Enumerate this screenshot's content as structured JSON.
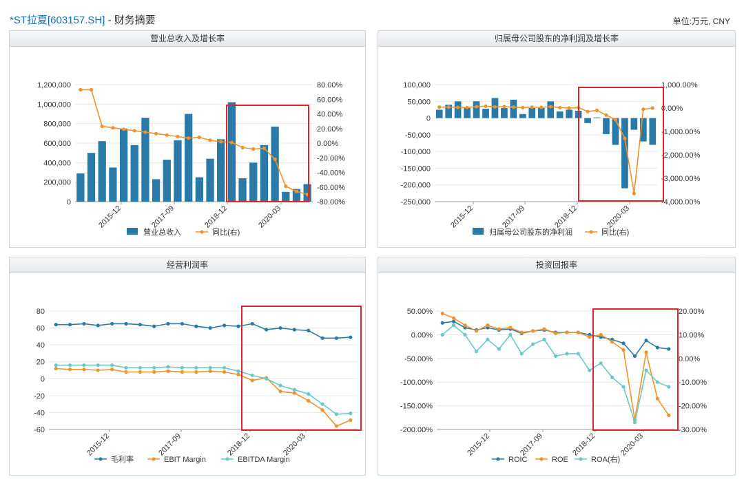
{
  "page": {
    "title_link": "*ST拉夏[603157.SH]",
    "title_rest": " - 财务摘要",
    "unit": "单位:万元, CNY"
  },
  "colors": {
    "bar": "#2a7aa8",
    "orange": "#f0922e",
    "blue": "#2a7aa8",
    "teal": "#6cc7c8",
    "highlight": "#d9262c",
    "grid": "#e6e6e6"
  },
  "chart_data": [
    {
      "type": "bar",
      "title": "营业总收入及增长率",
      "x_ticks": [
        "2015-12",
        "2017-09",
        "2018-12",
        "2020-03"
      ],
      "y_left": {
        "ticks": [
          "0",
          "200,000",
          "400,000",
          "600,000",
          "800,000",
          "1,000,000",
          "1,200,000"
        ],
        "lim": [
          0,
          1200000
        ]
      },
      "y_right": {
        "ticks": [
          "-80.00%",
          "-60.00%",
          "-40.00%",
          "-20.00%",
          "0.00%",
          "20.00%",
          "40.00%",
          "60.00%",
          "80.00%"
        ],
        "lim": [
          -80,
          80
        ]
      },
      "series": [
        {
          "name": "营业总收入",
          "kind": "bar",
          "axis": "left",
          "values": [
            290000,
            500000,
            620000,
            350000,
            750000,
            580000,
            860000,
            230000,
            430000,
            630000,
            900000,
            250000,
            440000,
            640000,
            1020000,
            240000,
            400000,
            580000,
            770000,
            100000,
            130000,
            180000
          ]
        },
        {
          "name": "同比(右)",
          "kind": "line",
          "axis": "right",
          "values": [
            73,
            73,
            23,
            21,
            19,
            17,
            15,
            13,
            11,
            9,
            7,
            8,
            4,
            2,
            1,
            -6,
            -8,
            -7,
            -22,
            -59,
            -66,
            -70
          ]
        }
      ],
      "legend": [
        "营业总收入",
        "同比(右)"
      ]
    },
    {
      "type": "bar",
      "title": "归属母公司股东的净利润及增长率",
      "x_ticks": [
        "2015-12",
        "2017-09",
        "2018-12",
        "2020-03"
      ],
      "y_left": {
        "ticks": [
          "-250,000",
          "-200,000",
          "-150,000",
          "-100,000",
          "-50,000",
          "0",
          "50,000",
          "100,000"
        ],
        "lim": [
          -250000,
          100000
        ]
      },
      "y_right": {
        "ticks": [
          "-4,000.00%",
          "-3,000.00%",
          "-2,000.00%",
          "-1,000.00%",
          "0.00%",
          "1,000.00%"
        ],
        "lim": [
          -4000,
          1000
        ]
      },
      "series": [
        {
          "name": "归属母公司股东的净利润",
          "kind": "bar",
          "axis": "left",
          "values": [
            25000,
            40000,
            50000,
            30000,
            50000,
            28000,
            60000,
            30000,
            55000,
            12000,
            30000,
            30000,
            50000,
            20000,
            25000,
            22000,
            -15000,
            2000,
            -48000,
            -80000,
            -210000,
            -35000,
            -70000,
            -80000
          ]
        },
        {
          "name": "同比(右)",
          "kind": "line",
          "axis": "right",
          "values": [
            40,
            40,
            30,
            20,
            60,
            80,
            50,
            60,
            40,
            20,
            40,
            30,
            60,
            20,
            0,
            20,
            -150,
            -100,
            -300,
            -500,
            -1300,
            -3650,
            -50,
            0
          ]
        }
      ],
      "legend": [
        "归属母公司股东的净利润",
        "同比(右)"
      ]
    },
    {
      "type": "line",
      "title": "经营利润率",
      "x_ticks": [
        "2015-12",
        "2017-09",
        "2018-12",
        "2020-03"
      ],
      "y_left": {
        "ticks": [
          "-60",
          "-40",
          "-20",
          "0",
          "20",
          "40",
          "60",
          "80"
        ],
        "lim": [
          -60,
          80
        ]
      },
      "series": [
        {
          "name": "毛利率",
          "values": [
            64,
            64,
            65,
            63,
            65,
            65,
            64,
            62,
            65,
            65,
            62,
            60,
            63,
            62,
            65,
            58,
            60,
            58,
            57,
            48,
            48,
            49
          ]
        },
        {
          "name": "EBIT Margin",
          "values": [
            12,
            11,
            11,
            10,
            11,
            8,
            8,
            8,
            9,
            8,
            8,
            9,
            8,
            5,
            -2,
            1,
            -15,
            -17,
            -26,
            -37,
            -56,
            -49
          ]
        },
        {
          "name": "EBITDA Margin",
          "values": [
            16,
            16,
            16,
            16,
            16,
            13,
            13,
            13,
            14,
            13,
            13,
            13,
            13,
            9,
            4,
            0,
            -8,
            -13,
            -18,
            -30,
            -42,
            -41
          ]
        }
      ],
      "legend": [
        "毛利率",
        "EBIT Margin",
        "EBITDA Margin"
      ]
    },
    {
      "type": "line",
      "title": "投资回报率",
      "x_ticks": [
        "2015-12",
        "2017-09",
        "2018-12",
        "2020-03"
      ],
      "y_left": {
        "ticks": [
          "-200.00%",
          "-150.00%",
          "-100.00%",
          "-50.00%",
          "0.00%",
          "50.00%"
        ],
        "lim": [
          -200,
          50
        ]
      },
      "y_right": {
        "ticks": [
          "-30.00%",
          "-20.00%",
          "-10.00%",
          "0.00%",
          "10.00%",
          "20.00%"
        ],
        "lim": [
          -30,
          20
        ]
      },
      "series": [
        {
          "name": "ROIC",
          "axis": "left",
          "values": [
            25,
            28,
            15,
            10,
            15,
            10,
            12,
            3,
            8,
            10,
            5,
            5,
            5,
            0,
            -5,
            -10,
            -18,
            -45,
            -12,
            -27,
            -30
          ]
        },
        {
          "name": "ROE",
          "axis": "left",
          "values": [
            45,
            35,
            20,
            8,
            20,
            12,
            15,
            5,
            8,
            12,
            3,
            5,
            5,
            -5,
            0,
            -15,
            -32,
            -180,
            -37,
            -135,
            -170
          ]
        },
        {
          "name": "ROA(右)",
          "axis": "right",
          "values": [
            10,
            14,
            10,
            3,
            8,
            4,
            10,
            2,
            6,
            8,
            1,
            2,
            2,
            -5,
            -2,
            -8,
            -12,
            -27,
            -5,
            -10,
            -12
          ]
        }
      ],
      "legend": [
        "ROIC",
        "ROE",
        "ROA(右)"
      ]
    }
  ]
}
